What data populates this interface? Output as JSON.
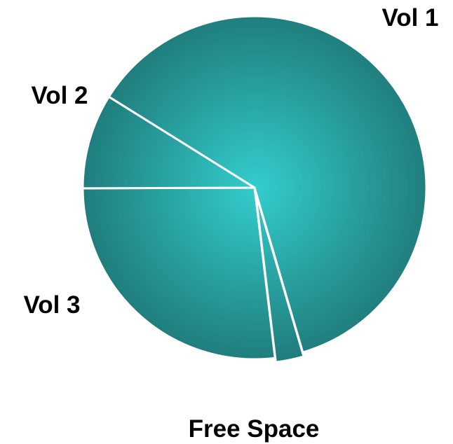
{
  "chart_data": {
    "type": "pie",
    "title": "",
    "slices": [
      {
        "label": "Vol 1",
        "value": 58.5
      },
      {
        "label": "Free Space",
        "value": 2.5
      },
      {
        "label": "Vol 3",
        "value": 25.5
      },
      {
        "label": "Vol 2",
        "value": 8.5
      }
    ],
    "exploded_slice": "Free Space",
    "legend": false,
    "colors": {
      "slice_center": "#33CDCD",
      "slice_edge": "#207C7C",
      "separator": "#FFFFFF",
      "label": "#000000"
    }
  }
}
